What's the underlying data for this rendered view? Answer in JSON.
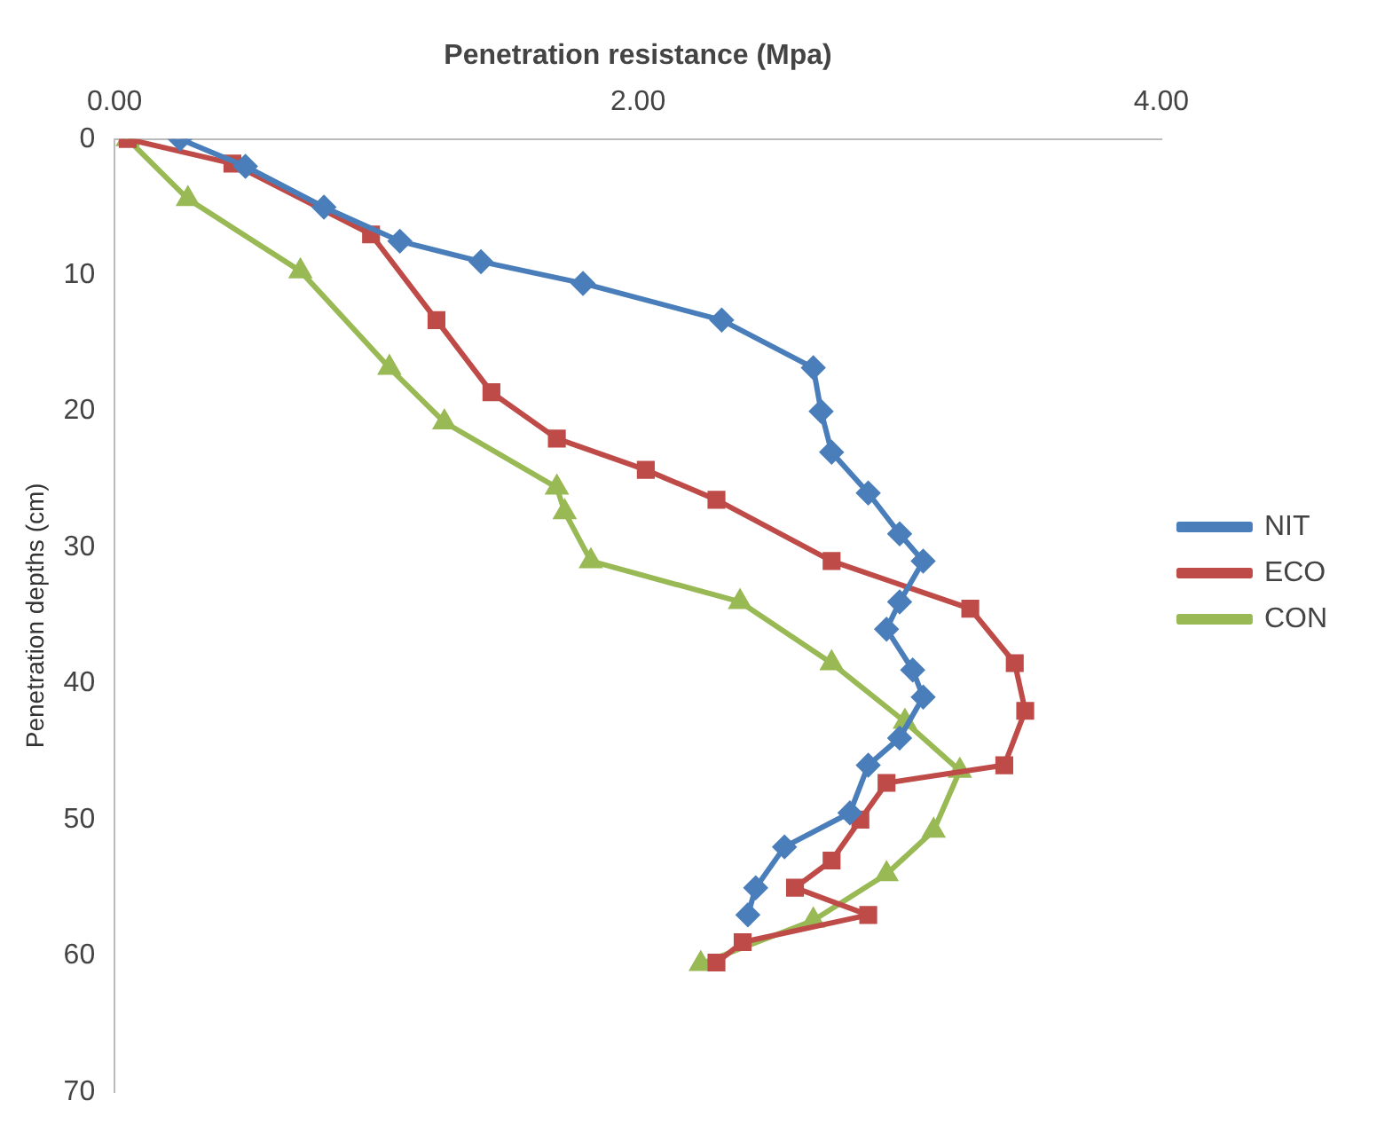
{
  "chart_data": {
    "type": "line",
    "xlabel": "Penetration resistance (Mpa)",
    "ylabel": "Penetration depths (cm)",
    "xlim": [
      0,
      4
    ],
    "xticks": [
      {
        "value": 0,
        "label": "0.00"
      },
      {
        "value": 2,
        "label": "2.00"
      },
      {
        "value": 4,
        "label": "4.00"
      }
    ],
    "ylim": [
      70,
      0
    ],
    "yticks": [
      0,
      10,
      20,
      30,
      40,
      50,
      60,
      70
    ],
    "grid": false,
    "legend": "right",
    "line_style": "solid",
    "series": [
      {
        "name": "NIT",
        "color": "#4a7ebb",
        "marker": "diamond",
        "x": [
          0.25,
          0.5,
          0.8,
          1.09,
          1.4,
          1.79,
          2.32,
          2.67,
          2.7,
          2.74,
          2.88,
          3.0,
          3.09,
          3.0,
          2.95,
          3.05,
          3.09,
          3.0,
          2.88,
          2.81,
          2.56,
          2.45,
          2.42
        ],
        "values": [
          0,
          2,
          5,
          7.5,
          9,
          10.6,
          13.3,
          16.8,
          20,
          23,
          26,
          29,
          31,
          34,
          36,
          39,
          41,
          44,
          46,
          49.5,
          52,
          55,
          57
        ]
      },
      {
        "name": "ECO",
        "color": "#be4b48",
        "marker": "square",
        "x": [
          0.05,
          0.45,
          0.98,
          1.23,
          1.44,
          1.69,
          2.03,
          2.3,
          2.74,
          3.27,
          3.44,
          3.48,
          3.4,
          2.95,
          2.85,
          2.74,
          2.6,
          2.88,
          2.4,
          2.3
        ],
        "values": [
          0,
          1.8,
          7,
          13.3,
          18.6,
          22,
          24.3,
          26.5,
          31,
          34.5,
          38.5,
          42,
          46,
          47.3,
          50,
          53,
          55,
          57,
          59,
          60.5
        ]
      },
      {
        "name": "CON",
        "color": "#98b954",
        "marker": "triangle",
        "x": [
          0.05,
          0.28,
          0.71,
          1.05,
          1.26,
          1.69,
          1.72,
          1.82,
          2.39,
          2.74,
          3.02,
          3.23,
          3.13,
          2.95,
          2.67,
          2.24
        ],
        "values": [
          0,
          4.4,
          9.7,
          16.8,
          20.8,
          25.6,
          27.4,
          31,
          34,
          38.5,
          42.8,
          46.4,
          50.8,
          54,
          57.4,
          60.6
        ]
      }
    ]
  }
}
